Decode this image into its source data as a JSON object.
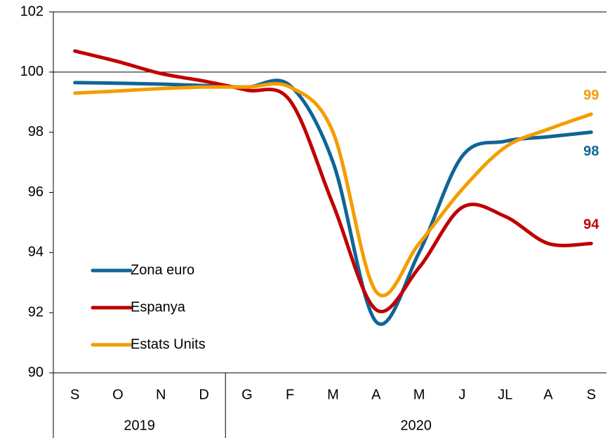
{
  "chart_data": {
    "type": "line",
    "categories": [
      "S",
      "O",
      "N",
      "D",
      "G",
      "F",
      "M",
      "A",
      "M",
      "J",
      "JL",
      "A",
      "S"
    ],
    "groups": [
      {
        "label": "2019",
        "span": 4
      },
      {
        "label": "2020",
        "span": 9
      }
    ],
    "series": [
      {
        "name": "Zona euro",
        "color": "#0f6597",
        "end_label": "98",
        "values": [
          99.65,
          99.63,
          99.6,
          99.55,
          99.5,
          99.55,
          97.0,
          91.7,
          94.0,
          97.2,
          97.7,
          97.85,
          98.0
        ]
      },
      {
        "name": "Espanya",
        "color": "#c00000",
        "end_label": "94",
        "values": [
          100.7,
          100.35,
          99.95,
          99.7,
          99.4,
          99.05,
          95.6,
          92.1,
          93.5,
          95.5,
          95.2,
          94.3,
          94.3
        ]
      },
      {
        "name": "Estats Units",
        "color": "#f59c00",
        "end_label": "99",
        "values": [
          99.3,
          99.37,
          99.45,
          99.5,
          99.5,
          99.5,
          98.0,
          92.7,
          94.3,
          96.1,
          97.5,
          98.1,
          98.6
        ]
      }
    ],
    "ylim": [
      90,
      102
    ],
    "yticks": [
      90,
      92,
      94,
      96,
      98,
      100,
      102
    ],
    "reference_line": 100,
    "legend": "lower left"
  }
}
